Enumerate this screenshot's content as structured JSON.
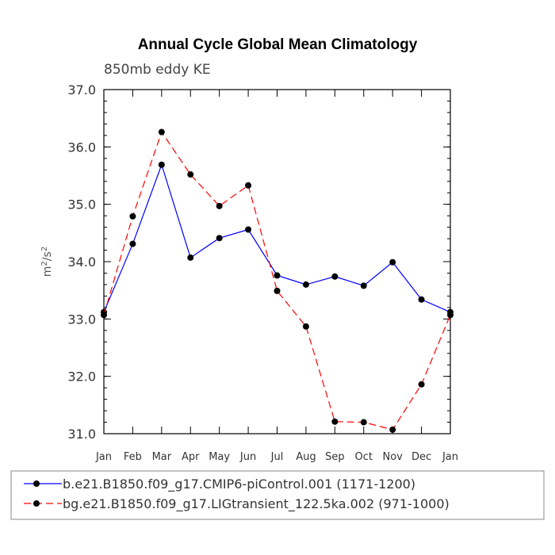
{
  "chart_data": {
    "type": "line",
    "title": "Annual Cycle Global Mean Climatology",
    "subtitle": "850mb eddy KE",
    "ylabel_base": "m",
    "ylabel_sup1": "2",
    "ylabel_mid": "/s",
    "ylabel_sup2": "2",
    "categories": [
      "Jan",
      "Feb",
      "Mar",
      "Apr",
      "May",
      "Jun",
      "Jul",
      "Aug",
      "Sep",
      "Oct",
      "Nov",
      "Dec",
      "Jan"
    ],
    "ylim": [
      31.0,
      37.0
    ],
    "yticks": [
      "31.0",
      "32.0",
      "33.0",
      "34.0",
      "35.0",
      "36.0",
      "37.0"
    ],
    "yticks_values": [
      31.0,
      32.0,
      33.0,
      34.0,
      35.0,
      36.0,
      37.0
    ],
    "series": [
      {
        "name": "b.e21.B1850.f09_g17.CMIP6-piControl.001 (1171-1200)",
        "color": "#0000ff",
        "dash": "solid",
        "values": [
          33.12,
          34.31,
          35.69,
          34.07,
          34.41,
          34.56,
          33.76,
          33.6,
          33.74,
          33.58,
          33.99,
          33.34,
          33.12
        ]
      },
      {
        "name": "bg.e21.B1850.f09_g17.LIGtransient_122.5ka.002 (971-1000)",
        "color": "#ff0000",
        "dash": "dashed",
        "values": [
          33.07,
          34.79,
          36.26,
          35.52,
          34.97,
          35.33,
          33.49,
          32.87,
          31.21,
          31.2,
          31.07,
          31.86,
          33.07
        ]
      }
    ]
  }
}
